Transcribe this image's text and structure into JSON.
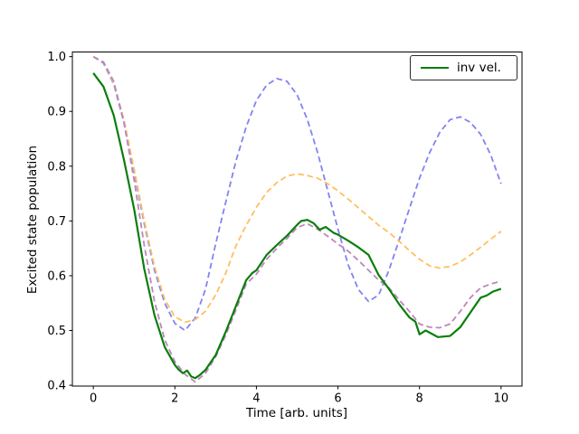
{
  "chart_data": {
    "type": "line",
    "title": "",
    "xlabel": "Time [arb. units]",
    "ylabel": "Excited state population",
    "xlim": [
      -0.514,
      10.514
    ],
    "ylim": [
      0.3985,
      1.0085
    ],
    "grid": false,
    "xticks": {
      "values": [
        0,
        2,
        4,
        6,
        8,
        10
      ],
      "labels": [
        "0",
        "2",
        "4",
        "6",
        "8",
        "10"
      ]
    },
    "yticks": {
      "values": [
        0.4,
        0.5,
        0.6,
        0.7,
        0.8,
        0.9,
        1.0
      ],
      "labels": [
        "0.4",
        "0.5",
        "0.6",
        "0.7",
        "0.8",
        "0.9",
        "1.0"
      ]
    },
    "legend": {
      "position": "upper right",
      "entries": [
        {
          "label": "inv vel.",
          "color": "#0a7e0a",
          "style": "solid"
        }
      ]
    },
    "series": [
      {
        "name": "dashed-blue",
        "label": "",
        "style": "dashed",
        "color": "#8383f2",
        "width": 1.8,
        "x": [
          0,
          0.25,
          0.5,
          0.75,
          1,
          1.25,
          1.5,
          1.75,
          2,
          2.25,
          2.5,
          2.75,
          3,
          3.25,
          3.5,
          3.75,
          4,
          4.25,
          4.5,
          4.75,
          5,
          5.25,
          5.5,
          5.75,
          6,
          6.25,
          6.5,
          6.75,
          7,
          7.25,
          7.5,
          7.75,
          8,
          8.25,
          8.5,
          8.75,
          9,
          9.25,
          9.5,
          9.75,
          10
        ],
        "values": [
          1.0,
          0.988,
          0.95,
          0.88,
          0.79,
          0.695,
          0.61,
          0.55,
          0.513,
          0.5,
          0.523,
          0.575,
          0.658,
          0.735,
          0.81,
          0.872,
          0.92,
          0.948,
          0.96,
          0.955,
          0.93,
          0.885,
          0.825,
          0.755,
          0.685,
          0.62,
          0.575,
          0.553,
          0.565,
          0.61,
          0.665,
          0.722,
          0.778,
          0.825,
          0.862,
          0.885,
          0.89,
          0.88,
          0.858,
          0.82,
          0.768
        ]
      },
      {
        "name": "dashed-orange",
        "label": "",
        "style": "dashed",
        "color": "#ffbf5e",
        "width": 1.8,
        "x": [
          0,
          0.25,
          0.5,
          0.75,
          1,
          1.25,
          1.5,
          1.75,
          2,
          2.25,
          2.5,
          2.75,
          3,
          3.25,
          3.5,
          3.75,
          4,
          4.25,
          4.5,
          4.75,
          5,
          5.25,
          5.5,
          5.75,
          6,
          6.25,
          6.5,
          6.75,
          7,
          7.25,
          7.5,
          7.75,
          8,
          8.25,
          8.5,
          8.75,
          9,
          9.25,
          9.5,
          9.75,
          10
        ],
        "values": [
          1.0,
          0.99,
          0.952,
          0.885,
          0.795,
          0.7,
          0.617,
          0.557,
          0.525,
          0.515,
          0.52,
          0.535,
          0.565,
          0.605,
          0.655,
          0.692,
          0.725,
          0.752,
          0.77,
          0.782,
          0.786,
          0.783,
          0.778,
          0.768,
          0.755,
          0.74,
          0.724,
          0.708,
          0.692,
          0.679,
          0.663,
          0.646,
          0.63,
          0.618,
          0.614,
          0.617,
          0.625,
          0.638,
          0.652,
          0.667,
          0.681
        ]
      },
      {
        "name": "dashed-purple",
        "label": "",
        "style": "dashed",
        "color": "#bd86bd",
        "width": 1.8,
        "x": [
          0,
          0.25,
          0.5,
          0.75,
          1,
          1.25,
          1.5,
          1.75,
          2,
          2.25,
          2.5,
          2.75,
          3,
          3.25,
          3.5,
          3.75,
          4,
          4.25,
          4.5,
          4.75,
          5,
          5.25,
          5.5,
          5.75,
          6,
          6.25,
          6.5,
          6.75,
          7,
          7.25,
          7.5,
          7.75,
          8,
          8.25,
          8.5,
          8.75,
          9,
          9.25,
          9.5,
          9.75,
          10
        ],
        "values": [
          1.0,
          0.99,
          0.955,
          0.88,
          0.775,
          0.655,
          0.553,
          0.483,
          0.443,
          0.42,
          0.406,
          0.422,
          0.452,
          0.492,
          0.538,
          0.585,
          0.603,
          0.63,
          0.65,
          0.668,
          0.688,
          0.695,
          0.685,
          0.672,
          0.658,
          0.645,
          0.628,
          0.61,
          0.592,
          0.578,
          0.556,
          0.535,
          0.512,
          0.506,
          0.505,
          0.512,
          0.535,
          0.56,
          0.578,
          0.585,
          0.59
        ]
      },
      {
        "name": "inv-vel",
        "label": "inv vel.",
        "style": "solid",
        "color": "#0a7e0a",
        "width": 2.2,
        "x": [
          0,
          0.25,
          0.5,
          0.75,
          1,
          1.25,
          1.5,
          1.75,
          2,
          2.1,
          2.2,
          2.3,
          2.4,
          2.5,
          2.6,
          2.75,
          3,
          3.25,
          3.5,
          3.75,
          3.9,
          4,
          4.25,
          4.5,
          4.75,
          5,
          5.1,
          5.25,
          5.4,
          5.55,
          5.7,
          5.9,
          6,
          6.25,
          6.5,
          6.75,
          7,
          7.25,
          7.5,
          7.75,
          7.9,
          8,
          8.15,
          8.3,
          8.45,
          8.6,
          8.75,
          9,
          9.25,
          9.5,
          9.65,
          9.8,
          10
        ],
        "values": [
          0.97,
          0.945,
          0.893,
          0.812,
          0.722,
          0.612,
          0.528,
          0.47,
          0.437,
          0.428,
          0.422,
          0.427,
          0.416,
          0.413,
          0.418,
          0.428,
          0.455,
          0.498,
          0.545,
          0.592,
          0.605,
          0.61,
          0.638,
          0.656,
          0.673,
          0.693,
          0.7,
          0.702,
          0.696,
          0.684,
          0.689,
          0.678,
          0.675,
          0.664,
          0.652,
          0.638,
          0.601,
          0.576,
          0.548,
          0.524,
          0.516,
          0.493,
          0.5,
          0.494,
          0.488,
          0.489,
          0.49,
          0.506,
          0.533,
          0.56,
          0.564,
          0.571,
          0.576
        ]
      }
    ]
  }
}
